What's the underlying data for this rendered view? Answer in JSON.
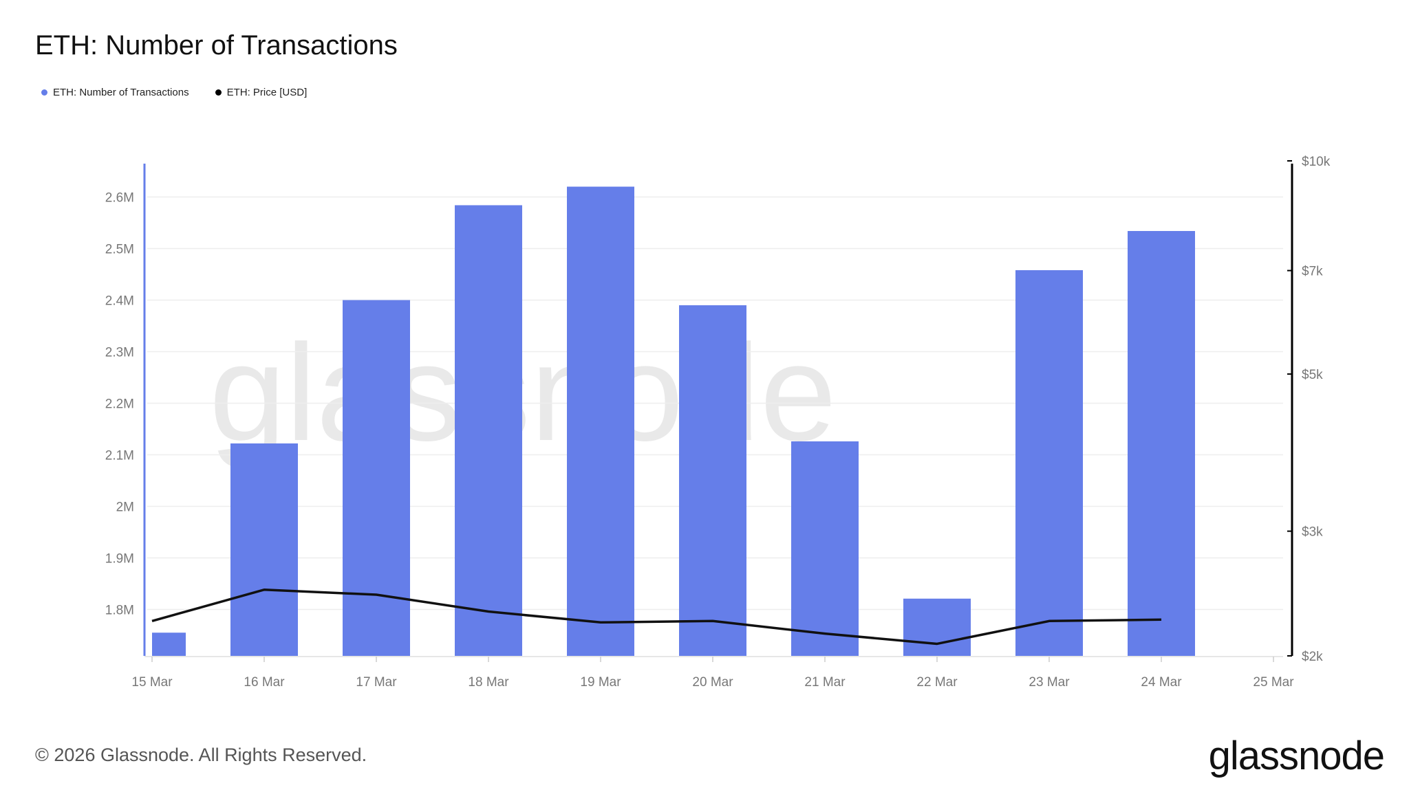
{
  "title": "ETH: Number of Transactions",
  "legend": [
    {
      "label": "ETH: Number of Transactions",
      "color": "#657ee9"
    },
    {
      "label": "ETH: Price [USD]",
      "color": "#000000"
    }
  ],
  "watermark": "glassnode",
  "footer": "© 2026 Glassnode. All Rights Reserved.",
  "logo": "glassnode",
  "colors": {
    "bar": "#657ee9",
    "line": "#111111",
    "grid": "#eeeeee",
    "left_axis": "#657ee9",
    "right_axis": "#000000"
  },
  "chart_data": {
    "type": "bar",
    "title": "ETH: Number of Transactions",
    "x_ticks": [
      "15 Mar",
      "16 Mar",
      "17 Mar",
      "18 Mar",
      "19 Mar",
      "20 Mar",
      "21 Mar",
      "22 Mar",
      "23 Mar",
      "24 Mar",
      "25 Mar"
    ],
    "categories": [
      "15 Mar",
      "16 Mar",
      "17 Mar",
      "18 Mar",
      "19 Mar",
      "20 Mar",
      "21 Mar",
      "22 Mar",
      "23 Mar",
      "24 Mar"
    ],
    "series": [
      {
        "name": "ETH: Number of Transactions",
        "type": "bar",
        "axis": "left",
        "values": [
          1755000,
          2122000,
          2400000,
          2584000,
          2620000,
          2390000,
          2126000,
          1821000,
          2458000,
          2534000
        ]
      },
      {
        "name": "ETH: Price [USD]",
        "type": "line",
        "axis": "right",
        "values": [
          2240,
          2480,
          2440,
          2310,
          2230,
          2240,
          2150,
          2080,
          2240,
          2250
        ]
      }
    ],
    "left_axis": {
      "ticks": [
        1800000,
        1900000,
        2000000,
        2100000,
        2200000,
        2300000,
        2400000,
        2500000,
        2600000
      ],
      "tick_labels": [
        "1.8M",
        "1.9M",
        "2M",
        "2.1M",
        "2.2M",
        "2.3M",
        "2.4M",
        "2.5M",
        "2.6M"
      ],
      "ylim": [
        1710000,
        2670000
      ]
    },
    "right_axis": {
      "scale": "log",
      "ticks": [
        2000,
        3000,
        5000,
        7000,
        10000
      ],
      "tick_labels": [
        "$2k",
        "$3k",
        "$5k",
        "$7k",
        "$10k"
      ],
      "ylim": [
        2000,
        10000
      ]
    },
    "grid": true,
    "legend_position": "top-left"
  }
}
